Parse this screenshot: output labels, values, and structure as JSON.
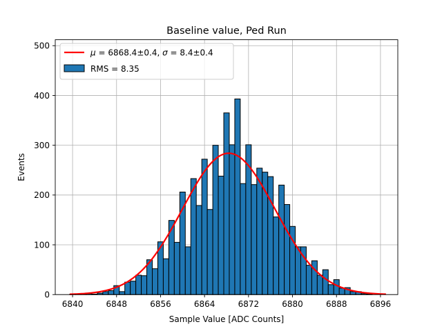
{
  "chart_data": {
    "type": "bar",
    "title": "Baseline value, Ped Run",
    "xlabel": "Sample Value [ADC Counts]",
    "ylabel": "Events",
    "xlim": [
      6836.85,
      6899.15
    ],
    "ylim": [
      0,
      512
    ],
    "xticks": [
      6840,
      6848,
      6856,
      6864,
      6872,
      6880,
      6888,
      6896
    ],
    "yticks": [
      0,
      100,
      200,
      300,
      400,
      500
    ],
    "grid": true,
    "legend_position": "top-left",
    "bin_width": 1,
    "histogram": {
      "name": "RMS = 8.35",
      "color": "#1f77b4",
      "edge_color": "#000000",
      "x": [
        6840,
        6841,
        6842,
        6843,
        6844,
        6845,
        6846,
        6847,
        6848,
        6849,
        6850,
        6851,
        6852,
        6853,
        6854,
        6855,
        6856,
        6857,
        6858,
        6859,
        6860,
        6861,
        6862,
        6863,
        6864,
        6865,
        6866,
        6867,
        6868,
        6869,
        6870,
        6871,
        6872,
        6873,
        6874,
        6875,
        6876,
        6877,
        6878,
        6879,
        6880,
        6881,
        6882,
        6883,
        6884,
        6885,
        6886,
        6887,
        6888,
        6889,
        6890,
        6891,
        6892,
        6893,
        6894
      ],
      "values": [
        1,
        1,
        1,
        2,
        1,
        3,
        6,
        8,
        18,
        6,
        25,
        27,
        39,
        38,
        70,
        52,
        106,
        72,
        149,
        105,
        206,
        96,
        233,
        179,
        272,
        171,
        300,
        238,
        365,
        301,
        393,
        223,
        301,
        221,
        254,
        246,
        237,
        156,
        220,
        181,
        137,
        96,
        96,
        59,
        68,
        39,
        50,
        20,
        30,
        13,
        14,
        6,
        6,
        2,
        1
      ]
    },
    "fit": {
      "name": "$\\mu = $6868.4±0.4, $\\sigma = $8.4±0.4",
      "label_parts": [
        "μ",
        " = 6868.4±0.4, ",
        "σ",
        " = 8.4±0.4"
      ],
      "color": "#ff0000",
      "type": "gaussian",
      "mu": 6868.4,
      "sigma": 8.4,
      "amplitude": 284,
      "x_range": [
        6839.5,
        6897.0
      ]
    }
  }
}
